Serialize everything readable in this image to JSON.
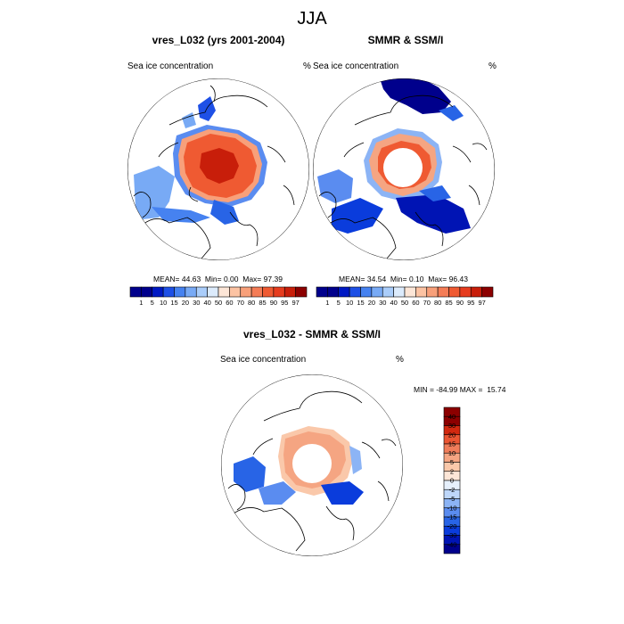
{
  "figure": {
    "title": "JJA"
  },
  "colors": {
    "seq": [
      "#00008c",
      "#0019c4",
      "#1e50e6",
      "#4682f0",
      "#78aaf5",
      "#aacdfa",
      "#dcebfc",
      "#fde6d7",
      "#fcc3a3",
      "#f8a07a",
      "#f47c56",
      "#ef5a32",
      "#e63c1e",
      "#c81e0a",
      "#8c0000"
    ],
    "diff": [
      "#00008c",
      "#0014b4",
      "#0a3cdc",
      "#2864e6",
      "#5a8cf0",
      "#8cb4f5",
      "#bed7fa",
      "#e6f0fc",
      "#fde6d7",
      "#fac8aa",
      "#f5a582",
      "#f07d5a",
      "#eb5532",
      "#d2280f",
      "#8c0000"
    ],
    "land_line": "#000000",
    "missing": "#ffffff"
  },
  "chart_data": [
    {
      "type": "polar-map",
      "title": "vres_L032 (yrs 2001-2004)",
      "left_label": "Sea ice concentration",
      "units": "%",
      "stats": {
        "mean_label": "MEAN=",
        "mean": "44.63",
        "min_label": "Min=",
        "min": "0.00",
        "max_label": "Max=",
        "max": "97.39"
      },
      "colorbar_labels": [
        "1",
        "5",
        "10",
        "15",
        "20",
        "30",
        "40",
        "50",
        "60",
        "70",
        "80",
        "85",
        "90",
        "95",
        "97"
      ]
    },
    {
      "type": "polar-map",
      "title": "SMMR & SSM/I",
      "left_label": "Sea ice concentration",
      "units": "%",
      "stats": {
        "mean_label": "MEAN=",
        "mean": "34.54",
        "min_label": "Min=",
        "min": "0.10",
        "max_label": "Max=",
        "max": "96.43"
      },
      "colorbar_labels": [
        "1",
        "5",
        "10",
        "15",
        "20",
        "30",
        "40",
        "50",
        "60",
        "70",
        "80",
        "85",
        "90",
        "95",
        "97"
      ]
    },
    {
      "type": "polar-map",
      "title": "vres_L032 - SMMR & SSM/I",
      "left_label": "Sea ice concentration",
      "units": "%",
      "stats_text": "MIN = -84.99 MAX =  15.74",
      "colorbar_labels": [
        "40",
        "30",
        "20",
        "15",
        "10",
        "5",
        "2",
        "0",
        "-2",
        "-5",
        "-10",
        "-15",
        "-20",
        "-30",
        "-40"
      ]
    }
  ]
}
